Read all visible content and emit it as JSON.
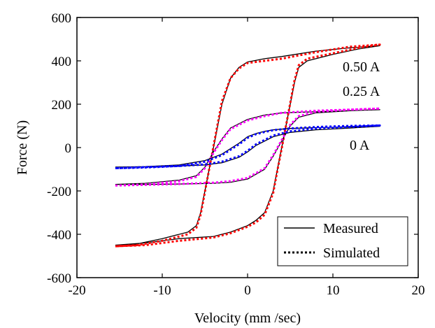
{
  "chart_data": {
    "type": "line",
    "title": "",
    "xlabel": "Velocity (mm /sec)",
    "ylabel": "Force (N)",
    "xlim": [
      -20,
      20
    ],
    "ylim": [
      -600,
      600
    ],
    "xticks": [
      -20,
      -10,
      0,
      10,
      20
    ],
    "yticks": [
      -600,
      -400,
      -200,
      0,
      200,
      400,
      600
    ],
    "grid": false,
    "legend_position": "bottom-right",
    "legend": [
      {
        "label": "Measured",
        "style": "solid"
      },
      {
        "label": "Simulated",
        "style": "dotted"
      }
    ],
    "curve_labels": [
      {
        "text": "0.50 A",
        "series": "0.50 A"
      },
      {
        "text": "0.25 A",
        "series": "0.25 A"
      },
      {
        "text": "0 A",
        "series": "0 A"
      }
    ],
    "series": [
      {
        "current": "0.50 A",
        "kind": "Measured",
        "color": "#000000",
        "dash": "solid",
        "x": [
          -15.5,
          -13,
          -10,
          -7,
          -6,
          -5.5,
          -5,
          -4.5,
          -4,
          -3.5,
          -3,
          -2,
          -1,
          0,
          2,
          4,
          8,
          12,
          15.5,
          13,
          10,
          7,
          6,
          5.5,
          5,
          4.5,
          4,
          3.5,
          3,
          2,
          1,
          0,
          -2,
          -4,
          -8,
          -12,
          -15.5
        ],
        "y": [
          -450,
          -445,
          -420,
          -390,
          -360,
          -300,
          -200,
          -100,
          0,
          100,
          200,
          320,
          370,
          395,
          410,
          420,
          445,
          460,
          470,
          455,
          430,
          400,
          370,
          300,
          200,
          100,
          0,
          -100,
          -200,
          -300,
          -335,
          -360,
          -390,
          -410,
          -420,
          -440,
          -450
        ]
      },
      {
        "current": "0.50 A",
        "kind": "Simulated",
        "color": "#ff0000",
        "dash": "dotted",
        "x": [
          -15.5,
          -13,
          -10,
          -7,
          -6,
          -5.5,
          -5,
          -4.5,
          -4,
          -3.5,
          -3,
          -2,
          -1,
          0,
          2,
          4,
          8,
          12,
          15.5,
          13,
          10,
          7,
          6,
          5.5,
          5,
          4.5,
          4,
          3.5,
          3,
          2,
          1,
          0,
          -2,
          -4,
          -8,
          -12,
          -15.5
        ],
        "y": [
          -455,
          -450,
          -430,
          -400,
          -370,
          -310,
          -205,
          -100,
          5,
          110,
          215,
          320,
          365,
          390,
          400,
          410,
          440,
          465,
          475,
          460,
          435,
          410,
          380,
          310,
          205,
          100,
          -5,
          -105,
          -210,
          -310,
          -345,
          -365,
          -395,
          -415,
          -430,
          -450,
          -455
        ]
      },
      {
        "current": "0.25 A",
        "kind": "Measured",
        "color": "#000000",
        "dash": "solid",
        "x": [
          -15.5,
          -12,
          -8,
          -6,
          -5,
          -4,
          -3,
          -2,
          0,
          2,
          4,
          8,
          12,
          15.5,
          12,
          8,
          6,
          5,
          4,
          3,
          2,
          0,
          -2,
          -4,
          -8,
          -12,
          -15.5
        ],
        "y": [
          -170,
          -165,
          -150,
          -130,
          -90,
          -20,
          40,
          90,
          130,
          150,
          160,
          165,
          170,
          175,
          170,
          160,
          140,
          100,
          30,
          -40,
          -100,
          -145,
          -160,
          -165,
          -168,
          -170,
          -170
        ]
      },
      {
        "current": "0.25 A",
        "kind": "Simulated",
        "color": "#ff00ff",
        "dash": "dotted",
        "x": [
          -15.5,
          -12,
          -8,
          -6,
          -5,
          -4,
          -3,
          -2,
          0,
          2,
          4,
          8,
          12,
          15.5,
          12,
          8,
          6,
          5,
          4,
          3,
          2,
          0,
          -2,
          -4,
          -8,
          -12,
          -15.5
        ],
        "y": [
          -175,
          -170,
          -155,
          -135,
          -95,
          -25,
          35,
          85,
          125,
          145,
          160,
          170,
          175,
          180,
          175,
          165,
          145,
          105,
          35,
          -35,
          -95,
          -140,
          -155,
          -162,
          -168,
          -172,
          -175
        ]
      },
      {
        "current": "0 A",
        "kind": "Measured",
        "color": "#000000",
        "dash": "solid",
        "x": [
          -15.5,
          -12,
          -8,
          -5,
          -3,
          -1,
          0,
          1,
          2,
          3,
          5,
          8,
          12,
          15.5,
          12,
          8,
          5,
          3,
          1,
          0,
          -1,
          -3,
          -5,
          -8,
          -12,
          -15.5
        ],
        "y": [
          -90,
          -88,
          -80,
          -60,
          -30,
          20,
          50,
          65,
          75,
          82,
          88,
          92,
          95,
          98,
          90,
          82,
          70,
          50,
          10,
          -20,
          -45,
          -70,
          -80,
          -85,
          -88,
          -90
        ]
      },
      {
        "current": "0 A",
        "kind": "Simulated",
        "color": "#0000ff",
        "dash": "dotted",
        "x": [
          -15.5,
          -12,
          -8,
          -5,
          -3,
          -1,
          0,
          1,
          2,
          3,
          5,
          8,
          12,
          15.5,
          12,
          8,
          5,
          3,
          1,
          0,
          -1,
          -3,
          -5,
          -8,
          -12,
          -15.5
        ],
        "y": [
          -95,
          -92,
          -85,
          -65,
          -35,
          15,
          45,
          62,
          72,
          80,
          88,
          95,
          100,
          102,
          95,
          88,
          75,
          55,
          15,
          -15,
          -40,
          -65,
          -78,
          -85,
          -90,
          -95
        ]
      }
    ]
  }
}
